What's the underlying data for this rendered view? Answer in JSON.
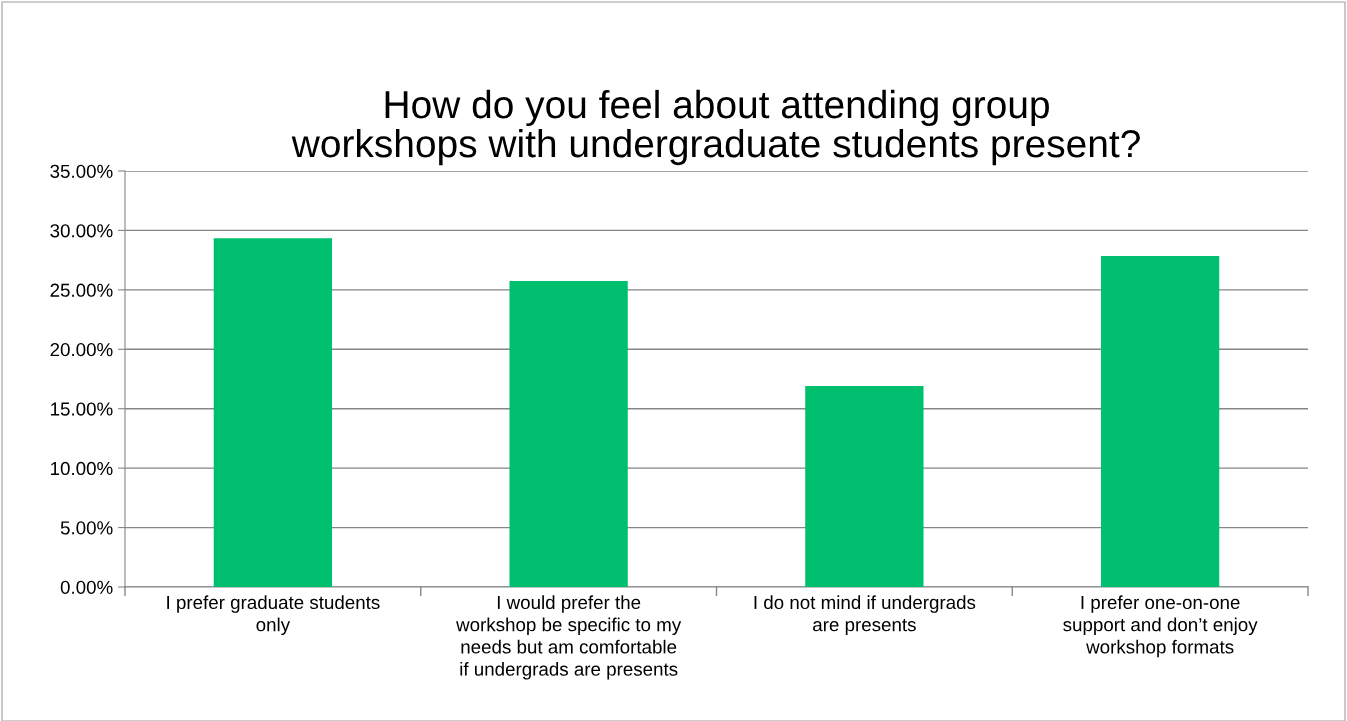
{
  "chart_data": {
    "type": "bar",
    "title": "How do you feel about attending group\nworkshops with undergraduate students present?",
    "categories": [
      "I prefer graduate students\nonly",
      "I would prefer the\nworkshop be specific to my\nneeds but am comfortable\nif undergrads are presents",
      "I do not mind if undergrads\nare presents",
      "I prefer one-on-one\nsupport and don’t enjoy\nworkshop formats"
    ],
    "values": [
      29.35,
      25.74,
      16.92,
      27.84
    ],
    "color": "#00bf6f",
    "ylim": [
      0,
      35
    ],
    "yticks": [
      {
        "value": 0,
        "label": "0.00%"
      },
      {
        "value": 5,
        "label": "5.00%"
      },
      {
        "value": 10,
        "label": "10.00%"
      },
      {
        "value": 15,
        "label": "15.00%"
      },
      {
        "value": 20,
        "label": "20.00%"
      },
      {
        "value": 25,
        "label": "25.00%"
      },
      {
        "value": 30,
        "label": "30.00%"
      },
      {
        "value": 35,
        "label": "35.00%"
      }
    ],
    "grid": "y"
  }
}
